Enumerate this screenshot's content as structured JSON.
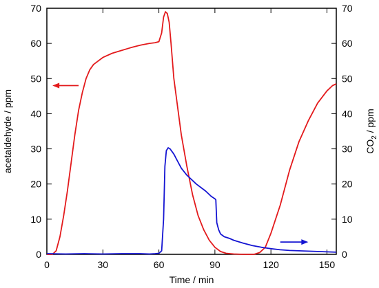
{
  "chart_data": {
    "type": "line",
    "title": "",
    "xlabel": "Time / min",
    "ylabel_left": "acetaldehyde / ppm",
    "ylabel_right_main": "CO",
    "ylabel_right_sub": "2",
    "ylabel_right_tail": " / ppm",
    "xlim": [
      0,
      155
    ],
    "ylim_left": [
      0,
      70
    ],
    "ylim_right": [
      0,
      70
    ],
    "xticks": [
      0,
      30,
      60,
      90,
      120,
      150
    ],
    "yticks_left": [
      0,
      10,
      20,
      30,
      40,
      50,
      60,
      70
    ],
    "yticks_right": [
      0,
      10,
      20,
      30,
      40,
      50,
      60,
      70
    ],
    "grid": false,
    "legend": "none",
    "colors": {
      "acetaldehyde": "#e31a1c",
      "co2": "#1414d2",
      "axis": "#000000"
    },
    "series": [
      {
        "axis": "left",
        "color": "#e31a1c",
        "x": [
          0,
          3,
          5,
          7,
          9,
          11,
          13,
          15,
          17,
          19,
          21,
          23,
          25,
          30,
          35,
          40,
          45,
          50,
          55,
          58,
          60,
          61.5,
          62.5,
          63.5,
          64.5,
          65.5,
          66.5,
          68,
          70,
          72,
          75,
          78,
          81,
          84,
          87,
          90,
          93,
          96,
          100,
          105,
          108,
          111,
          114,
          117,
          120,
          125,
          130,
          135,
          140,
          145,
          150,
          153,
          155
        ],
        "y": [
          0,
          0,
          1,
          5,
          11,
          18,
          26,
          34,
          41,
          46,
          50,
          52.5,
          54,
          56,
          57.2,
          58,
          58.8,
          59.5,
          60,
          60.2,
          60.5,
          63,
          67.5,
          69,
          68.5,
          66,
          60,
          50,
          42,
          34,
          25,
          17,
          11,
          7,
          4,
          2,
          0.8,
          0.3,
          0.1,
          0,
          0,
          0,
          0.5,
          2,
          6,
          14,
          24,
          32,
          38,
          43,
          46.5,
          48,
          48.5
        ]
      },
      {
        "axis": "right",
        "color": "#1414d2",
        "x": [
          0,
          10,
          20,
          30,
          40,
          50,
          55,
          58,
          60,
          61.5,
          62.5,
          63.2,
          64,
          65,
          66,
          68,
          70,
          72,
          75,
          80,
          85,
          88,
          90,
          90.5,
          91,
          92,
          93,
          95,
          98,
          100,
          105,
          110,
          115,
          120,
          125,
          130,
          140,
          150,
          155
        ],
        "y": [
          0.2,
          0.1,
          0.2,
          0.1,
          0.2,
          0.2,
          0.1,
          0.2,
          0.3,
          1,
          10,
          25,
          29.5,
          30.3,
          30,
          28.5,
          26.5,
          24.5,
          22.5,
          20,
          18,
          16.5,
          15.8,
          15.5,
          9,
          7,
          5.8,
          5,
          4.5,
          4,
          3.2,
          2.5,
          2,
          1.6,
          1.3,
          1.1,
          0.9,
          0.7,
          0.6
        ]
      }
    ],
    "annotations": [
      {
        "type": "arrow",
        "direction": "left",
        "color": "#e31a1c",
        "x_from": 17,
        "x_to": 3,
        "y": 48,
        "axis": "left"
      },
      {
        "type": "arrow",
        "direction": "right",
        "color": "#1414d2",
        "x_from": 125,
        "x_to": 140,
        "y": 3.5,
        "axis": "right"
      }
    ]
  }
}
